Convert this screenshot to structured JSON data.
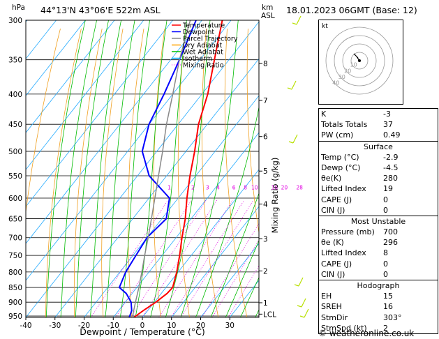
{
  "header": {
    "location": "44°13'N 43°06'E 522m ASL",
    "datetime": "18.01.2023 06GMT (Base: 12)",
    "pressure_unit": "hPa",
    "height_unit": "km",
    "height_unit2": "ASL"
  },
  "legend": [
    {
      "label": "Temperature",
      "color": "#ff0000",
      "style": "solid"
    },
    {
      "label": "Dewpoint",
      "color": "#0000ff",
      "style": "solid"
    },
    {
      "label": "Parcel Trajectory",
      "color": "#888888",
      "style": "solid"
    },
    {
      "label": "Dry Adiabat",
      "color": "#ffa500",
      "style": "solid"
    },
    {
      "label": "Wet Adiabat",
      "color": "#00c000",
      "style": "solid"
    },
    {
      "label": "Isotherm",
      "color": "#00aaff",
      "style": "solid"
    },
    {
      "label": "Mixing Ratio",
      "color": "#ff00ff",
      "style": "dotted"
    }
  ],
  "chart_data": {
    "type": "line",
    "xlabel": "Dewpoint / Temperature (°C)",
    "ylabel_right": "Mixing Ratio (g/kg)",
    "x_ticks": [
      "-40",
      "-30",
      "-20",
      "-10",
      "0",
      "10",
      "20",
      "30"
    ],
    "pressure_levels": [
      "300",
      "350",
      "400",
      "450",
      "500",
      "550",
      "600",
      "650",
      "700",
      "750",
      "800",
      "850",
      "900",
      "950"
    ],
    "height_labels": [
      {
        "km": "8",
        "p": 355
      },
      {
        "km": "7",
        "p": 410
      },
      {
        "km": "6",
        "p": 472
      },
      {
        "km": "5",
        "p": 540
      },
      {
        "km": "4",
        "p": 614
      },
      {
        "km": "3",
        "p": 703
      },
      {
        "km": "2",
        "p": 797
      },
      {
        "km": "1",
        "p": 902
      },
      {
        "km": "LCL",
        "p": 943
      }
    ],
    "mixing_ratio_labels": [
      "1",
      "2",
      "3",
      "4",
      "6",
      "8",
      "10",
      "16",
      "20",
      "28"
    ],
    "mixing_ratio_values": [
      1,
      2,
      3,
      4,
      6,
      8,
      10,
      16,
      20,
      28
    ],
    "series": [
      {
        "name": "Temperature",
        "color": "#ff0000",
        "points": [
          [
            955,
            -2.9
          ],
          [
            930,
            -1.5
          ],
          [
            900,
            0.5
          ],
          [
            870,
            2.0
          ],
          [
            850,
            2.3
          ],
          [
            800,
            -0.5
          ],
          [
            750,
            -4
          ],
          [
            700,
            -8
          ],
          [
            650,
            -12
          ],
          [
            600,
            -17
          ],
          [
            550,
            -22
          ],
          [
            500,
            -27
          ],
          [
            450,
            -33
          ],
          [
            400,
            -38
          ],
          [
            350,
            -45
          ],
          [
            300,
            -53
          ]
        ]
      },
      {
        "name": "Dewpoint",
        "color": "#0000ff",
        "points": [
          [
            955,
            -4.5
          ],
          [
            930,
            -5.5
          ],
          [
            900,
            -8
          ],
          [
            870,
            -12
          ],
          [
            850,
            -16
          ],
          [
            800,
            -18
          ],
          [
            750,
            -19
          ],
          [
            700,
            -20
          ],
          [
            650,
            -18.5
          ],
          [
            600,
            -23
          ],
          [
            550,
            -36
          ],
          [
            500,
            -45
          ],
          [
            450,
            -50
          ],
          [
            400,
            -53
          ],
          [
            350,
            -57
          ],
          [
            300,
            -62
          ]
        ]
      },
      {
        "name": "Parcel Trajectory",
        "color": "#888888",
        "points": [
          [
            955,
            -2.9
          ],
          [
            943,
            -4.1
          ],
          [
            900,
            -6.5
          ],
          [
            850,
            -9.3
          ],
          [
            800,
            -12.5
          ],
          [
            750,
            -16
          ],
          [
            700,
            -19.6
          ],
          [
            650,
            -23.6
          ],
          [
            600,
            -28
          ],
          [
            550,
            -32.8
          ],
          [
            500,
            -38
          ],
          [
            450,
            -44
          ],
          [
            400,
            -50
          ],
          [
            350,
            -57
          ],
          [
            300,
            -64
          ]
        ]
      }
    ]
  },
  "stats": {
    "rows": [
      {
        "key": "K",
        "value": "-3"
      },
      {
        "key": "Totals Totals",
        "value": "37"
      },
      {
        "key": "PW (cm)",
        "value": "0.49"
      }
    ]
  },
  "surface": {
    "title": "Surface",
    "rows": [
      {
        "key": "Temp (°C)",
        "value": "-2.9"
      },
      {
        "key": "Dewp (°C)",
        "value": "-4.5"
      },
      {
        "key": "θe(K)",
        "value": "280"
      },
      {
        "key": "Lifted Index",
        "value": "19"
      },
      {
        "key": "CAPE (J)",
        "value": "0"
      },
      {
        "key": "CIN (J)",
        "value": "0"
      }
    ]
  },
  "most_unstable": {
    "title": "Most Unstable",
    "rows": [
      {
        "key": "Pressure (mb)",
        "value": "700"
      },
      {
        "key": "θe (K)",
        "value": "296"
      },
      {
        "key": "Lifted Index",
        "value": "8"
      },
      {
        "key": "CAPE (J)",
        "value": "0"
      },
      {
        "key": "CIN (J)",
        "value": "0"
      }
    ]
  },
  "hodograph": {
    "title": "Hodograph",
    "label": "kt",
    "ring_labels": [
      "10",
      "20",
      "30",
      "40"
    ],
    "rows": [
      {
        "key": "EH",
        "value": "15"
      },
      {
        "key": "SREH",
        "value": "16"
      },
      {
        "key": "StmDir",
        "value": "303°"
      },
      {
        "key": "StmSpd (kt)",
        "value": "2"
      }
    ]
  },
  "footer": "© weatheronline.co.uk"
}
